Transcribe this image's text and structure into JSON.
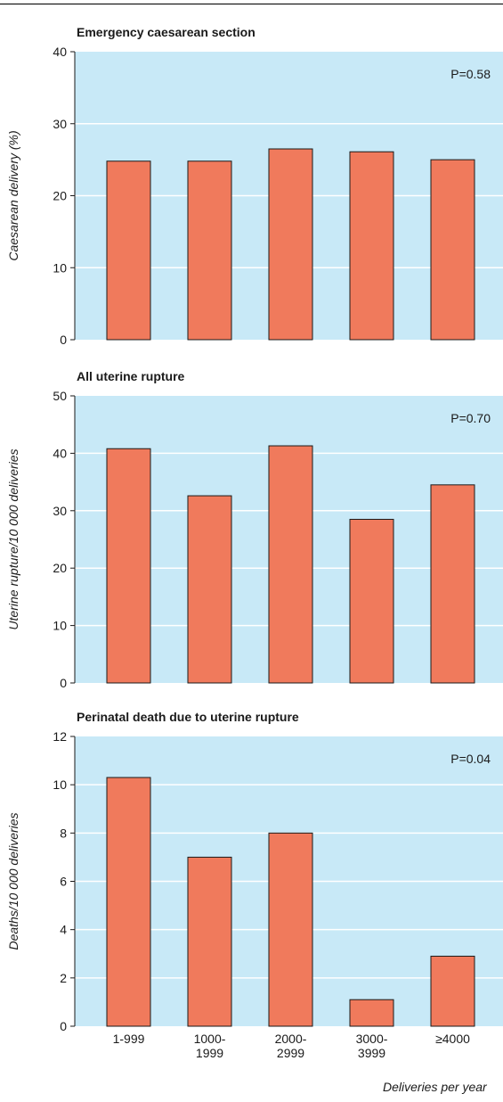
{
  "chart_data": {
    "type": "bar",
    "xlabel": "Deliveries per year",
    "categories": [
      [
        "1-999"
      ],
      [
        "1000-",
        "1999"
      ],
      [
        "2000-",
        "2999"
      ],
      [
        "3000-",
        "3999"
      ],
      [
        "≥4000"
      ]
    ],
    "colors": {
      "bar": "#f07a5c",
      "panel": "#c8e9f7",
      "gridline": "#ffffff",
      "bar_edge": "#1a1a1a"
    },
    "panels": [
      {
        "title": "Emergency caesarean section",
        "ylabel": "Caesarean delivery (%)",
        "ylim": [
          0,
          40
        ],
        "yticks": [
          0,
          10,
          20,
          30,
          40
        ],
        "values": [
          24.8,
          24.8,
          26.5,
          26.1,
          25.0
        ],
        "annotation": "P=0.58"
      },
      {
        "title": "All uterine rupture",
        "ylabel": "Uterine rupture/10 000 deliveries",
        "ylim": [
          0,
          50
        ],
        "yticks": [
          0,
          10,
          20,
          30,
          40,
          50
        ],
        "values": [
          40.8,
          32.6,
          41.3,
          28.5,
          34.5
        ],
        "annotation": "P=0.70"
      },
      {
        "title": "Perinatal death due to uterine rupture",
        "ylabel": "Deaths/10 000 deliveries",
        "ylim": [
          0,
          12
        ],
        "yticks": [
          0,
          2,
          4,
          6,
          8,
          10,
          12
        ],
        "values": [
          10.3,
          7.0,
          8.0,
          1.1,
          2.9
        ],
        "annotation": "P=0.04"
      }
    ]
  }
}
